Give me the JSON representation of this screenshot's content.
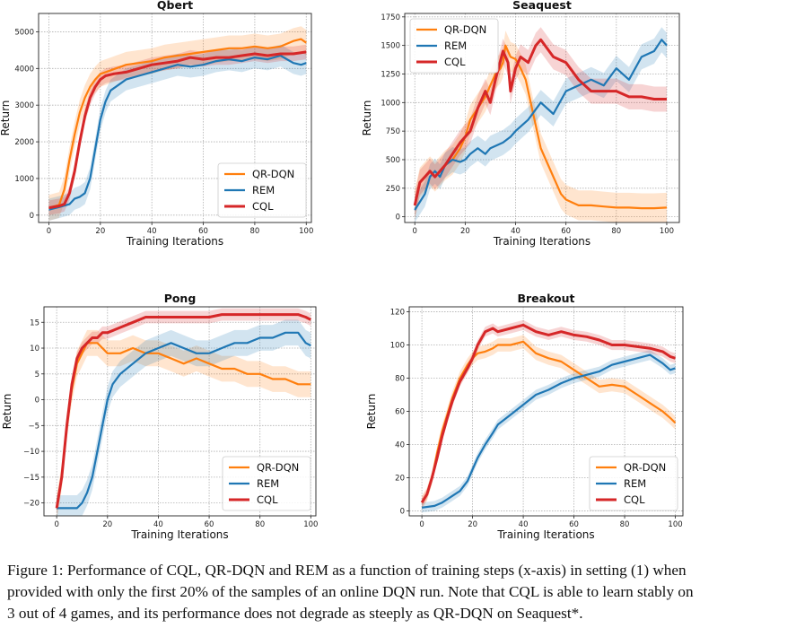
{
  "chart_data": [
    {
      "type": "line",
      "title": "Qbert",
      "xlabel": "Training Iterations",
      "ylabel": "Return",
      "xlim": [
        -4,
        102
      ],
      "ylim": [
        -200,
        5500
      ],
      "xticks": [
        0,
        20,
        40,
        60,
        80,
        100
      ],
      "yticks": [
        0,
        1000,
        2000,
        3000,
        4000,
        5000
      ],
      "ytick_labels": [
        "0",
        "1000",
        "2000",
        "3000",
        "4000",
        "5000"
      ],
      "grid": true,
      "legend": "lower-right",
      "series": [
        {
          "name": "QR-DQN",
          "color": "#ff7f0e",
          "band": 350,
          "x": [
            0,
            4,
            6,
            8,
            10,
            12,
            14,
            16,
            18,
            20,
            22,
            24,
            26,
            28,
            30,
            35,
            40,
            45,
            50,
            55,
            60,
            65,
            70,
            75,
            80,
            85,
            90,
            95,
            98,
            100
          ],
          "y": [
            200,
            280,
            700,
            1500,
            2200,
            2800,
            3200,
            3500,
            3700,
            3850,
            3900,
            3950,
            4000,
            4050,
            4100,
            4150,
            4200,
            4300,
            4350,
            4400,
            4450,
            4500,
            4550,
            4550,
            4600,
            4550,
            4600,
            4750,
            4800,
            4700
          ]
        },
        {
          "name": "REM",
          "color": "#1f77b4",
          "band": 300,
          "x": [
            0,
            4,
            8,
            10,
            12,
            14,
            16,
            18,
            20,
            22,
            24,
            26,
            28,
            30,
            35,
            40,
            45,
            50,
            55,
            60,
            65,
            70,
            75,
            80,
            85,
            90,
            95,
            98,
            100
          ],
          "y": [
            150,
            220,
            300,
            450,
            500,
            600,
            1000,
            1800,
            2600,
            3100,
            3400,
            3500,
            3600,
            3700,
            3800,
            3900,
            4000,
            4100,
            4050,
            4100,
            4200,
            4250,
            4200,
            4300,
            4250,
            4350,
            4150,
            4100,
            4150
          ]
        },
        {
          "name": "CQL",
          "color": "#d62728",
          "band": 200,
          "x": [
            0,
            4,
            6,
            8,
            10,
            12,
            14,
            16,
            18,
            20,
            22,
            25,
            30,
            35,
            40,
            45,
            50,
            55,
            60,
            65,
            70,
            75,
            80,
            85,
            90,
            95,
            100
          ],
          "y": [
            200,
            250,
            300,
            600,
            1200,
            2000,
            2700,
            3200,
            3500,
            3700,
            3800,
            3850,
            3900,
            4000,
            4100,
            4150,
            4200,
            4300,
            4250,
            4300,
            4300,
            4350,
            4400,
            4350,
            4400,
            4400,
            4450
          ]
        }
      ]
    },
    {
      "type": "line",
      "title": "Seaquest",
      "xlabel": "Training Iterations",
      "ylabel": "Return",
      "xlim": [
        -4,
        105
      ],
      "ylim": [
        -50,
        1780
      ],
      "xticks": [
        0,
        20,
        40,
        60,
        80,
        100
      ],
      "yticks": [
        0,
        250,
        500,
        750,
        1000,
        1250,
        1500,
        1750
      ],
      "ytick_labels": [
        "0",
        "250",
        "500",
        "750",
        "1000",
        "1250",
        "1500",
        "1750"
      ],
      "grid": true,
      "legend": "upper-left",
      "series": [
        {
          "name": "QR-DQN",
          "color": "#ff7f0e",
          "band": 130,
          "x": [
            0,
            2,
            4,
            6,
            8,
            10,
            12,
            15,
            18,
            20,
            22,
            25,
            28,
            30,
            32,
            34,
            35,
            36,
            38,
            40,
            42,
            44,
            46,
            48,
            50,
            52,
            55,
            58,
            60,
            63,
            65,
            70,
            75,
            80,
            85,
            90,
            95,
            100
          ],
          "y": [
            100,
            300,
            350,
            400,
            350,
            400,
            450,
            500,
            600,
            700,
            850,
            950,
            1050,
            1150,
            1250,
            1300,
            1350,
            1500,
            1400,
            1380,
            1300,
            1200,
            1000,
            800,
            600,
            500,
            350,
            200,
            150,
            120,
            100,
            100,
            90,
            80,
            80,
            75,
            75,
            80
          ]
        },
        {
          "name": "REM",
          "color": "#1f77b4",
          "band": 110,
          "x": [
            0,
            4,
            6,
            8,
            10,
            12,
            15,
            18,
            20,
            22,
            25,
            28,
            30,
            35,
            38,
            40,
            45,
            50,
            55,
            60,
            65,
            70,
            75,
            80,
            85,
            90,
            95,
            98,
            100
          ],
          "y": [
            60,
            200,
            350,
            400,
            350,
            450,
            500,
            480,
            500,
            550,
            600,
            550,
            600,
            650,
            700,
            750,
            850,
            1000,
            900,
            1100,
            1150,
            1200,
            1150,
            1300,
            1200,
            1400,
            1450,
            1550,
            1500
          ]
        },
        {
          "name": "CQL",
          "color": "#d62728",
          "band": 110,
          "x": [
            0,
            2,
            4,
            6,
            8,
            10,
            12,
            15,
            18,
            20,
            22,
            25,
            28,
            30,
            32,
            35,
            37,
            38,
            40,
            42,
            45,
            48,
            50,
            55,
            60,
            65,
            70,
            75,
            80,
            85,
            90,
            95,
            100
          ],
          "y": [
            100,
            300,
            350,
            400,
            350,
            400,
            450,
            550,
            650,
            700,
            750,
            950,
            1100,
            1000,
            1200,
            1450,
            1350,
            1100,
            1300,
            1400,
            1350,
            1500,
            1550,
            1400,
            1350,
            1200,
            1100,
            1100,
            1100,
            1050,
            1050,
            1030,
            1030
          ]
        }
      ]
    },
    {
      "type": "line",
      "title": "Pong",
      "xlabel": "Training Iterations",
      "ylabel": "Return",
      "xlim": [
        -5,
        102
      ],
      "ylim": [
        -22.5,
        18
      ],
      "xticks": [
        0,
        20,
        40,
        60,
        80,
        100
      ],
      "yticks": [
        -20,
        -15,
        -10,
        -5,
        0,
        5,
        10,
        15
      ],
      "ytick_labels": [
        "−20",
        "−15",
        "−10",
        "−5",
        "0",
        "5",
        "10",
        "15"
      ],
      "grid": true,
      "legend": "lower-right",
      "series": [
        {
          "name": "QR-DQN",
          "color": "#ff7f0e",
          "band": 2.5,
          "x": [
            0,
            2,
            4,
            6,
            8,
            10,
            12,
            14,
            16,
            18,
            20,
            25,
            30,
            35,
            40,
            45,
            50,
            55,
            60,
            65,
            70,
            75,
            80,
            85,
            90,
            95,
            100
          ],
          "y": [
            -21,
            -15,
            -5,
            2,
            7,
            9,
            11,
            11,
            11,
            10,
            9,
            9,
            10,
            9,
            9,
            8,
            7,
            8,
            7,
            6,
            6,
            5,
            5,
            4,
            4,
            3,
            3
          ]
        },
        {
          "name": "REM",
          "color": "#1f77b4",
          "band": 2.5,
          "x": [
            0,
            5,
            8,
            10,
            12,
            14,
            16,
            18,
            20,
            22,
            25,
            30,
            35,
            40,
            45,
            50,
            55,
            60,
            65,
            70,
            75,
            80,
            85,
            90,
            95,
            98,
            100
          ],
          "y": [
            -21,
            -21,
            -21,
            -20,
            -18,
            -15,
            -10,
            -5,
            0,
            3,
            5,
            7,
            9,
            10,
            11,
            10,
            9,
            9,
            10,
            11,
            11,
            12,
            12,
            13,
            13,
            11,
            10.5
          ]
        },
        {
          "name": "CQL",
          "color": "#d62728",
          "band": 1.2,
          "x": [
            0,
            2,
            4,
            6,
            8,
            10,
            12,
            14,
            16,
            18,
            20,
            25,
            30,
            35,
            40,
            45,
            50,
            55,
            60,
            65,
            70,
            75,
            80,
            85,
            90,
            95,
            98,
            100
          ],
          "y": [
            -21,
            -15,
            -5,
            3,
            8,
            10,
            11,
            12,
            12,
            13,
            13,
            14,
            15,
            16,
            16,
            16,
            16,
            16,
            16,
            16.5,
            16.5,
            16.5,
            16.5,
            16.5,
            16.5,
            16.5,
            16,
            15.5
          ]
        }
      ]
    },
    {
      "type": "line",
      "title": "Breakout",
      "xlabel": "Training Iterations",
      "ylabel": "Return",
      "xlim": [
        -5,
        103
      ],
      "ylim": [
        -3,
        123
      ],
      "xticks": [
        0,
        20,
        40,
        60,
        80,
        100
      ],
      "yticks": [
        0,
        20,
        40,
        60,
        80,
        100,
        120
      ],
      "ytick_labels": [
        "0",
        "20",
        "40",
        "60",
        "80",
        "100",
        "120"
      ],
      "grid": true,
      "legend": "lower-right",
      "series": [
        {
          "name": "QR-DQN",
          "color": "#ff7f0e",
          "band": 4,
          "x": [
            0,
            2,
            4,
            6,
            8,
            10,
            12,
            15,
            18,
            20,
            22,
            25,
            28,
            30,
            35,
            40,
            45,
            50,
            55,
            60,
            65,
            70,
            75,
            80,
            85,
            90,
            95,
            98,
            100
          ],
          "y": [
            5,
            10,
            20,
            35,
            48,
            58,
            68,
            80,
            88,
            92,
            95,
            96,
            98,
            100,
            100,
            102,
            95,
            92,
            90,
            85,
            80,
            75,
            76,
            75,
            70,
            65,
            60,
            56,
            53
          ]
        },
        {
          "name": "REM",
          "color": "#1f77b4",
          "band": 3,
          "x": [
            0,
            5,
            8,
            10,
            12,
            15,
            18,
            20,
            22,
            25,
            28,
            30,
            35,
            40,
            45,
            50,
            55,
            60,
            65,
            70,
            75,
            80,
            85,
            90,
            95,
            98,
            100
          ],
          "y": [
            2,
            3,
            5,
            7,
            9,
            12,
            18,
            25,
            32,
            40,
            47,
            52,
            58,
            64,
            70,
            73,
            77,
            80,
            82,
            84,
            88,
            90,
            92,
            94,
            89,
            85,
            86
          ]
        },
        {
          "name": "CQL",
          "color": "#d62728",
          "band": 3,
          "x": [
            0,
            2,
            4,
            6,
            8,
            10,
            12,
            15,
            18,
            20,
            22,
            25,
            28,
            30,
            35,
            40,
            45,
            50,
            55,
            60,
            65,
            70,
            75,
            80,
            85,
            90,
            95,
            98,
            100
          ],
          "y": [
            5,
            10,
            20,
            32,
            45,
            56,
            66,
            78,
            86,
            92,
            100,
            108,
            110,
            108,
            110,
            112,
            108,
            106,
            108,
            106,
            105,
            103,
            100,
            100,
            99,
            98,
            96,
            93,
            92
          ]
        }
      ]
    }
  ],
  "caption": {
    "line1": "Figure 1: Performance of CQL, QR-DQN and REM as a function of training steps (x-axis) in setting (1) when",
    "line2": "provided with only the first 20% of the samples of an online DQN run. Note that CQL is able to learn stably on",
    "line3": "3 out of 4 games, and its performance does not degrade as steeply as QR-DQN on Seaquest*."
  }
}
